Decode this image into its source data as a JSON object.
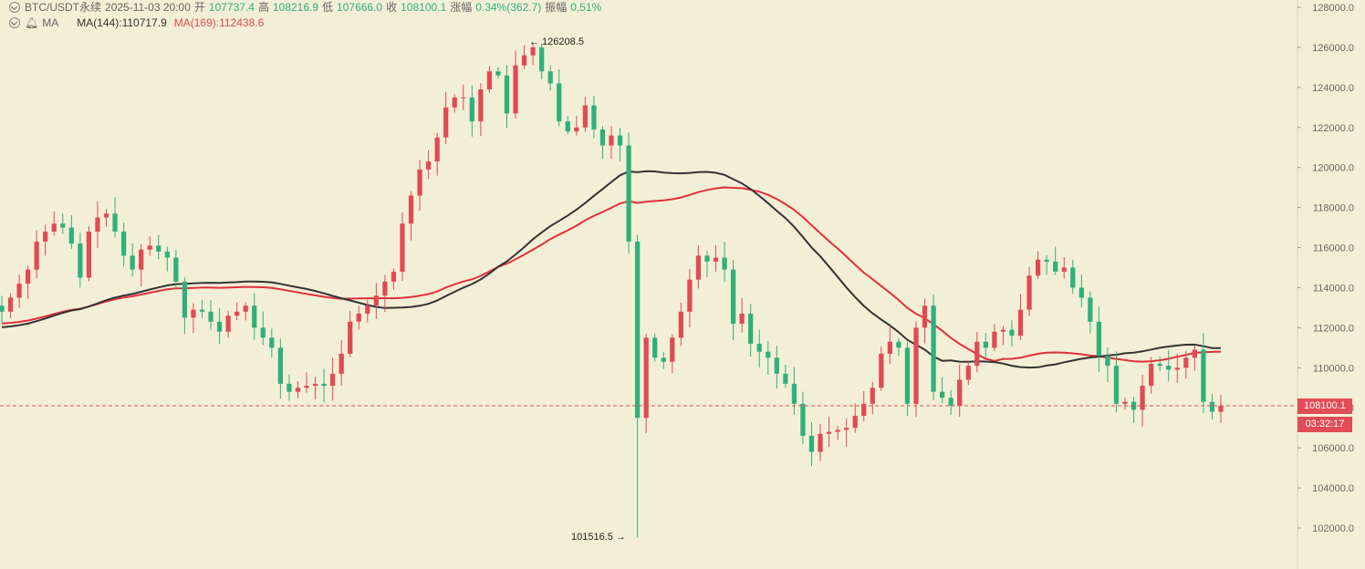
{
  "header": {
    "symbol": "BTC/USDT永续",
    "datetime": "2025-11-03 20:00",
    "open_label": "开",
    "open": "107737.4",
    "high_label": "高",
    "high": "108216.9",
    "low_label": "低",
    "low": "107666.0",
    "close_label": "收",
    "close": "108100.1",
    "change_label": "涨幅",
    "change": "0.34%(362.7)",
    "amplitude_label": "振幅",
    "amplitude": "0.51%"
  },
  "indicator": {
    "name": "MA",
    "ma144": "MA(144):110717.9",
    "ma169": "MA(169):112438.6"
  },
  "axis": {
    "ticks": [
      "128000.0",
      "126000.0",
      "124000.0",
      "122000.0",
      "120000.0",
      "118000.0",
      "116000.0",
      "114000.0",
      "112000.0",
      "110000.0",
      "108000.0",
      "106000.0",
      "104000.0",
      "102000.0"
    ]
  },
  "current": {
    "price": "108100.1",
    "countdown": "03:32:17"
  },
  "extremes": {
    "high_label": "← 126208.5",
    "low_label": "101516.5 →"
  },
  "colors": {
    "up": "#e04a55",
    "down": "#2fb07b",
    "ma144": "#333333",
    "ma169": "#e0303c",
    "background": "#f3efd6"
  },
  "chart_data": {
    "type": "candlestick",
    "ylim": [
      101000,
      128500
    ],
    "current_price": 108100.1,
    "high_marker": 126208.5,
    "low_marker": 101516.5,
    "candle_path_close": [
      112800,
      113500,
      114200,
      114900,
      116300,
      116800,
      117200,
      117000,
      116200,
      114500,
      116800,
      117500,
      117700,
      116800,
      115600,
      114900,
      115900,
      116100,
      115800,
      115500,
      114300,
      112500,
      112900,
      112800,
      112300,
      111800,
      112600,
      112800,
      113100,
      112000,
      111500,
      111000,
      109200,
      108800,
      109000,
      109100,
      109200,
      109100,
      109700,
      110700,
      112300,
      112700,
      113100,
      113600,
      114300,
      114800,
      117200,
      118600,
      119900,
      120300,
      121500,
      123000,
      123500,
      123500,
      122300,
      123900,
      124800,
      124600,
      122700,
      125100,
      125600,
      126000,
      124800,
      124200,
      122300,
      121800,
      122000,
      123100,
      121900,
      121100,
      121600,
      121100,
      116300,
      107500,
      111500,
      110500,
      110300,
      111500,
      112800,
      114400,
      115600,
      115300,
      115500,
      114900,
      112200,
      112700,
      111200,
      110800,
      110500,
      109700,
      109200,
      108200,
      106600,
      105800,
      106700,
      106800,
      106900,
      107000,
      107600,
      108200,
      109000,
      110700,
      111300,
      111000,
      108200,
      112000,
      113100,
      108800,
      108500,
      108100,
      109400,
      110100,
      111300,
      111000,
      111800,
      111900,
      111600,
      112900,
      114600,
      115400,
      115300,
      114800,
      115000,
      114000,
      113500,
      112300,
      110600,
      110100,
      108200,
      108300,
      107900,
      109100,
      110200,
      110100,
      109900,
      110000,
      110500,
      110900,
      108300,
      107800,
      108100
    ]
  }
}
